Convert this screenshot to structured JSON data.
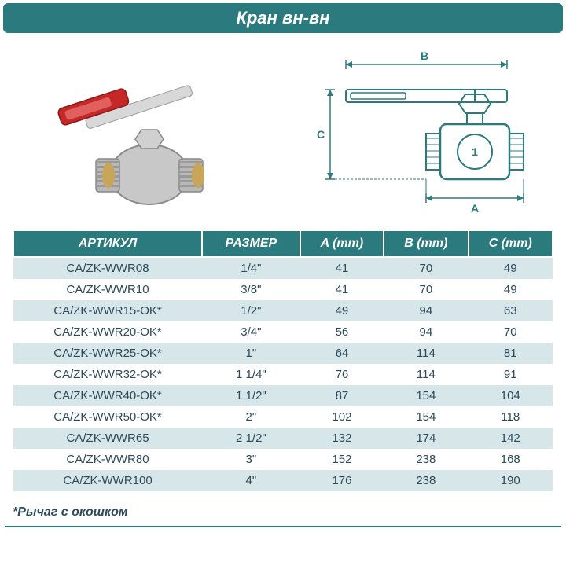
{
  "title": "Кран вн-вн",
  "footnote": "*Рычаг с окошком",
  "colors": {
    "teal": "#2b7a7d",
    "odd_row": "#d6e6e9",
    "even_row": "#ffffff",
    "text": "#2c4a5a",
    "handle_red": "#c62828",
    "valve_silver": "#bfbfbf",
    "valve_brass": "#c9a55a"
  },
  "diagram": {
    "labels": {
      "A": "A",
      "B": "B",
      "C": "C"
    }
  },
  "table": {
    "columns": [
      "АРТИКУЛ",
      "РАЗМЕР",
      "A (mm)",
      "B (mm)",
      "C (mm)"
    ],
    "rows": [
      [
        "CA/ZK-WWR08",
        "1/4\"",
        "41",
        "70",
        "49"
      ],
      [
        "CA/ZK-WWR10",
        "3/8\"",
        "41",
        "70",
        "49"
      ],
      [
        "CA/ZK-WWR15-OK*",
        "1/2\"",
        "49",
        "94",
        "63"
      ],
      [
        "CA/ZK-WWR20-OK*",
        "3/4\"",
        "56",
        "94",
        "70"
      ],
      [
        "CA/ZK-WWR25-OK*",
        "1\"",
        "64",
        "114",
        "81"
      ],
      [
        "CA/ZK-WWR32-OK*",
        "1 1/4\"",
        "76",
        "114",
        "91"
      ],
      [
        "CA/ZK-WWR40-OK*",
        "1 1/2\"",
        "87",
        "154",
        "104"
      ],
      [
        "CA/ZK-WWR50-OK*",
        "2\"",
        "102",
        "154",
        "118"
      ],
      [
        "CA/ZK-WWR65",
        "2 1/2\"",
        "132",
        "174",
        "142"
      ],
      [
        "CA/ZK-WWR80",
        "3\"",
        "152",
        "238",
        "168"
      ],
      [
        "CA/ZK-WWR100",
        "4\"",
        "176",
        "238",
        "190"
      ]
    ]
  }
}
